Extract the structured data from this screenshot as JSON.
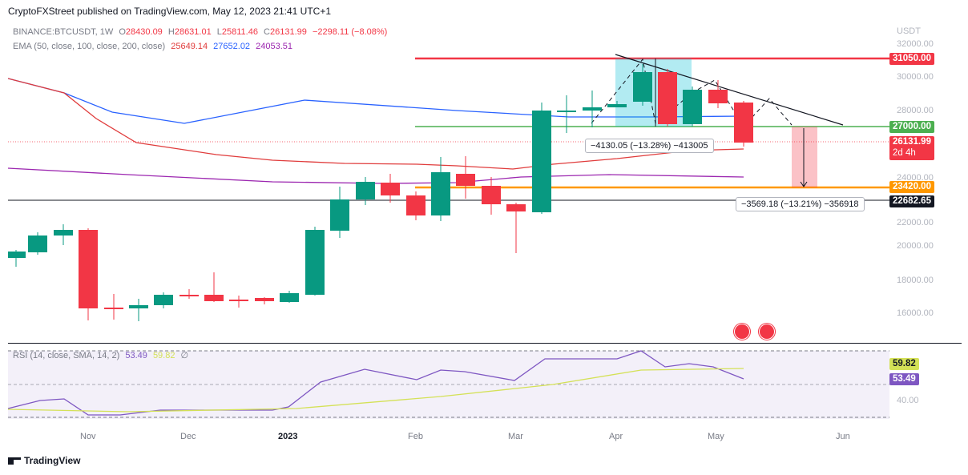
{
  "header": {
    "published": "CryptoFXStreet published on TradingView.com, May 12, 2023 21:41 UTC+1"
  },
  "legend": {
    "symbol": "BINANCE:BTCUSDT, 1W",
    "open_label": "O",
    "open": "28430.09",
    "high_label": "H",
    "high": "28631.01",
    "low_label": "L",
    "low": "25811.46",
    "close_label": "C",
    "close": "26131.99",
    "change": "−2298.11 (−8.08%)",
    "ema_title": "EMA (50, close, 100, close, 200, close)",
    "ema50": "25649.14",
    "ema100": "27652.02",
    "ema200": "24053.51",
    "rsi_title": "RSI (14, close, SMA, 14, 2)",
    "rsi": "53.49",
    "rsi_sma": "59.82",
    "rsi_extra": "∅"
  },
  "axis": {
    "currency": "USDT",
    "price_ticks": [
      "32000.00",
      "30000.00",
      "28000.00",
      "24000.00",
      "22000.00",
      "20000.00",
      "18000.00",
      "16000.00"
    ],
    "rsi_ticks": [
      "40.00"
    ],
    "time_labels": [
      "Nov",
      "Dec",
      "2023",
      "Feb",
      "Mar",
      "Apr",
      "May",
      "Jun"
    ]
  },
  "tags": {
    "resistance": "31050.00",
    "support_green": "27000.00",
    "price_now": "26131.99",
    "countdown": "2d 4h",
    "target": "23420.00",
    "black_line": "22682.65",
    "rsi_sma": "59.82",
    "rsi_val": "53.49"
  },
  "measures": {
    "first": "−4130.05 (−13.28%) −413005",
    "second": "−3569.18 (−13.21%) −356918"
  },
  "colors": {
    "up": "#089981",
    "down": "#f23645",
    "ema50": "#e03c3c",
    "ema100": "#2962ff",
    "ema200": "#9c27b0",
    "support": "#4caf50",
    "target": "#ff9800"
  },
  "footer": {
    "brand": "TradingView"
  }
}
